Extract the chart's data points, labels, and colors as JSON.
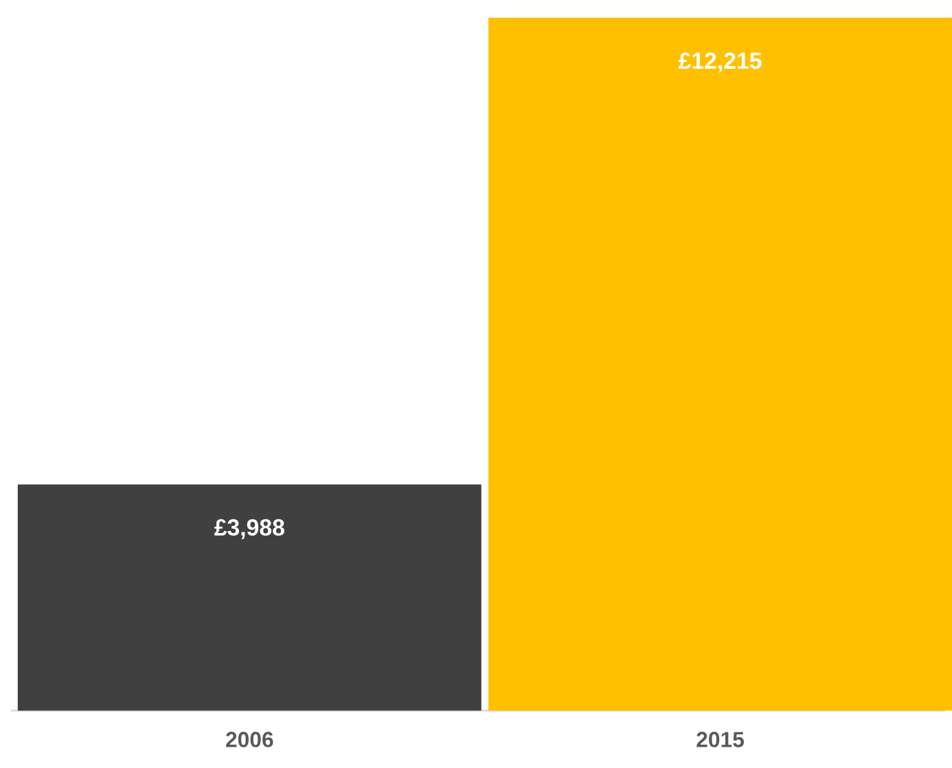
{
  "chart_data": {
    "type": "bar",
    "categories": [
      "2006",
      "2015"
    ],
    "values": [
      3988,
      12215
    ],
    "colors": [
      "#404040",
      "#ffc000"
    ],
    "value_labels": [
      "£3,988",
      "£12,215"
    ]
  }
}
